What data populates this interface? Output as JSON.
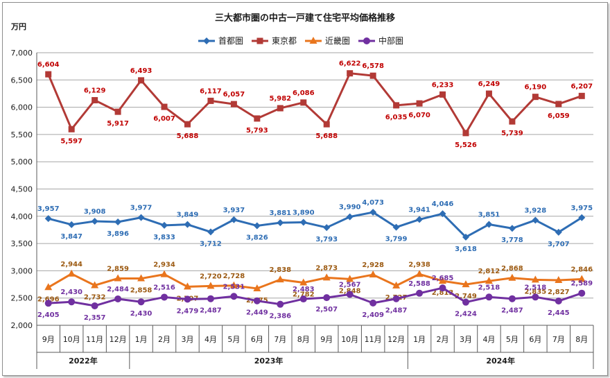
{
  "chart_data": {
    "type": "line",
    "title": "三大都市圏の中古一戸建て住宅平均価格推移",
    "ylabel": "万円",
    "ylim": [
      2000,
      7000
    ],
    "yticks": [
      2000,
      2500,
      3000,
      3500,
      4000,
      4500,
      5000,
      5500,
      6000,
      6500,
      7000
    ],
    "ytick_labels": [
      "2,000",
      "2,500",
      "3,000",
      "3,500",
      "4,000",
      "4,500",
      "5,000",
      "5,500",
      "6,000",
      "6,500",
      "7,000"
    ],
    "categories": [
      "9月",
      "10月",
      "11月",
      "12月",
      "1月",
      "2月",
      "3月",
      "4月",
      "5月",
      "6月",
      "7月",
      "8月",
      "9月",
      "10月",
      "11月",
      "12月",
      "1月",
      "2月",
      "3月",
      "4月",
      "5月",
      "6月",
      "7月",
      "8月"
    ],
    "years": [
      {
        "label": "2022年",
        "start": 0,
        "end": 3
      },
      {
        "label": "2023年",
        "start": 4,
        "end": 15
      },
      {
        "label": "2024年",
        "start": 16,
        "end": 23
      }
    ],
    "legend_position": "top",
    "grid": true,
    "series": [
      {
        "name": "首都圏",
        "color": "#2E6DB4",
        "marker": "diamond",
        "values": [
          3957,
          3847,
          3908,
          3896,
          3977,
          3833,
          3849,
          3712,
          3937,
          3826,
          3881,
          3890,
          3793,
          3990,
          4073,
          3799,
          3941,
          4046,
          3618,
          3851,
          3778,
          3928,
          3707,
          3975
        ],
        "labels": [
          "3,957",
          "3,847",
          "3,908",
          "3,896",
          "3,977",
          "3,833",
          "3,849",
          "3,712",
          "3,937",
          "3,826",
          "3,881",
          "3,890",
          "3,793",
          "3,990",
          "4,073",
          "3,799",
          "3,941",
          "4,046",
          "3,618",
          "3,851",
          "3,778",
          "3,928",
          "3,707",
          "3,975"
        ]
      },
      {
        "name": "東京都",
        "color": "#B23A36",
        "marker": "square",
        "values": [
          6604,
          5597,
          6129,
          5917,
          6493,
          6007,
          5688,
          6117,
          6057,
          5793,
          5982,
          6086,
          5688,
          6622,
          6578,
          6035,
          6070,
          6233,
          5526,
          6249,
          5739,
          6190,
          6059,
          6207
        ],
        "labels": [
          "6,604",
          "5,597",
          "6,129",
          "5,917",
          "6,493",
          "6,007",
          "5,688",
          "6,117",
          "6,057",
          "5,793",
          "5,982",
          "6,086",
          "5,688",
          "6,622",
          "6,578",
          "6,035",
          "6,070",
          "6,233",
          "5,526",
          "6,249",
          "5,739",
          "6,190",
          "6,059",
          "6,207"
        ]
      },
      {
        "name": "近畿圏",
        "color": "#E9751D",
        "marker": "triangle",
        "values": [
          2696,
          2944,
          2732,
          2859,
          2858,
          2934,
          2707,
          2720,
          2728,
          2675,
          2838,
          2782,
          2873,
          2848,
          2928,
          2727,
          2938,
          2813,
          2749,
          2812,
          2868,
          2835,
          2827,
          2846
        ],
        "labels": [
          "2,696",
          "2,944",
          "2,732",
          "2,859",
          "2,858",
          "2,934",
          "2,707",
          "2,720",
          "2,728",
          "2,675",
          "2,838",
          "2,782",
          "2,873",
          "2,848",
          "2,928",
          "2,727",
          "2,938",
          "2,813",
          "2,749",
          "2,812",
          "2,868",
          "2,835",
          "2,827",
          "2,846"
        ]
      },
      {
        "name": "中部圏",
        "color": "#7030A0",
        "marker": "circle",
        "values": [
          2405,
          2430,
          2357,
          2484,
          2430,
          2516,
          2479,
          2487,
          2531,
          2449,
          2386,
          2483,
          2507,
          2567,
          2409,
          2487,
          2588,
          2685,
          2424,
          2518,
          2487,
          2518,
          2445,
          2589
        ],
        "labels": [
          "2,405",
          "2,430",
          "2,357",
          "2,484",
          "2,430",
          "2,516",
          "2,479",
          "2,487",
          "2,531",
          "2,449",
          "2,386",
          "2,483",
          "2,507",
          "2,567",
          "2,409",
          "2,487",
          "2,588",
          "2,685",
          "2,424",
          "2,518",
          "2,487",
          "2,518",
          "2,445",
          "2,589"
        ]
      }
    ]
  }
}
